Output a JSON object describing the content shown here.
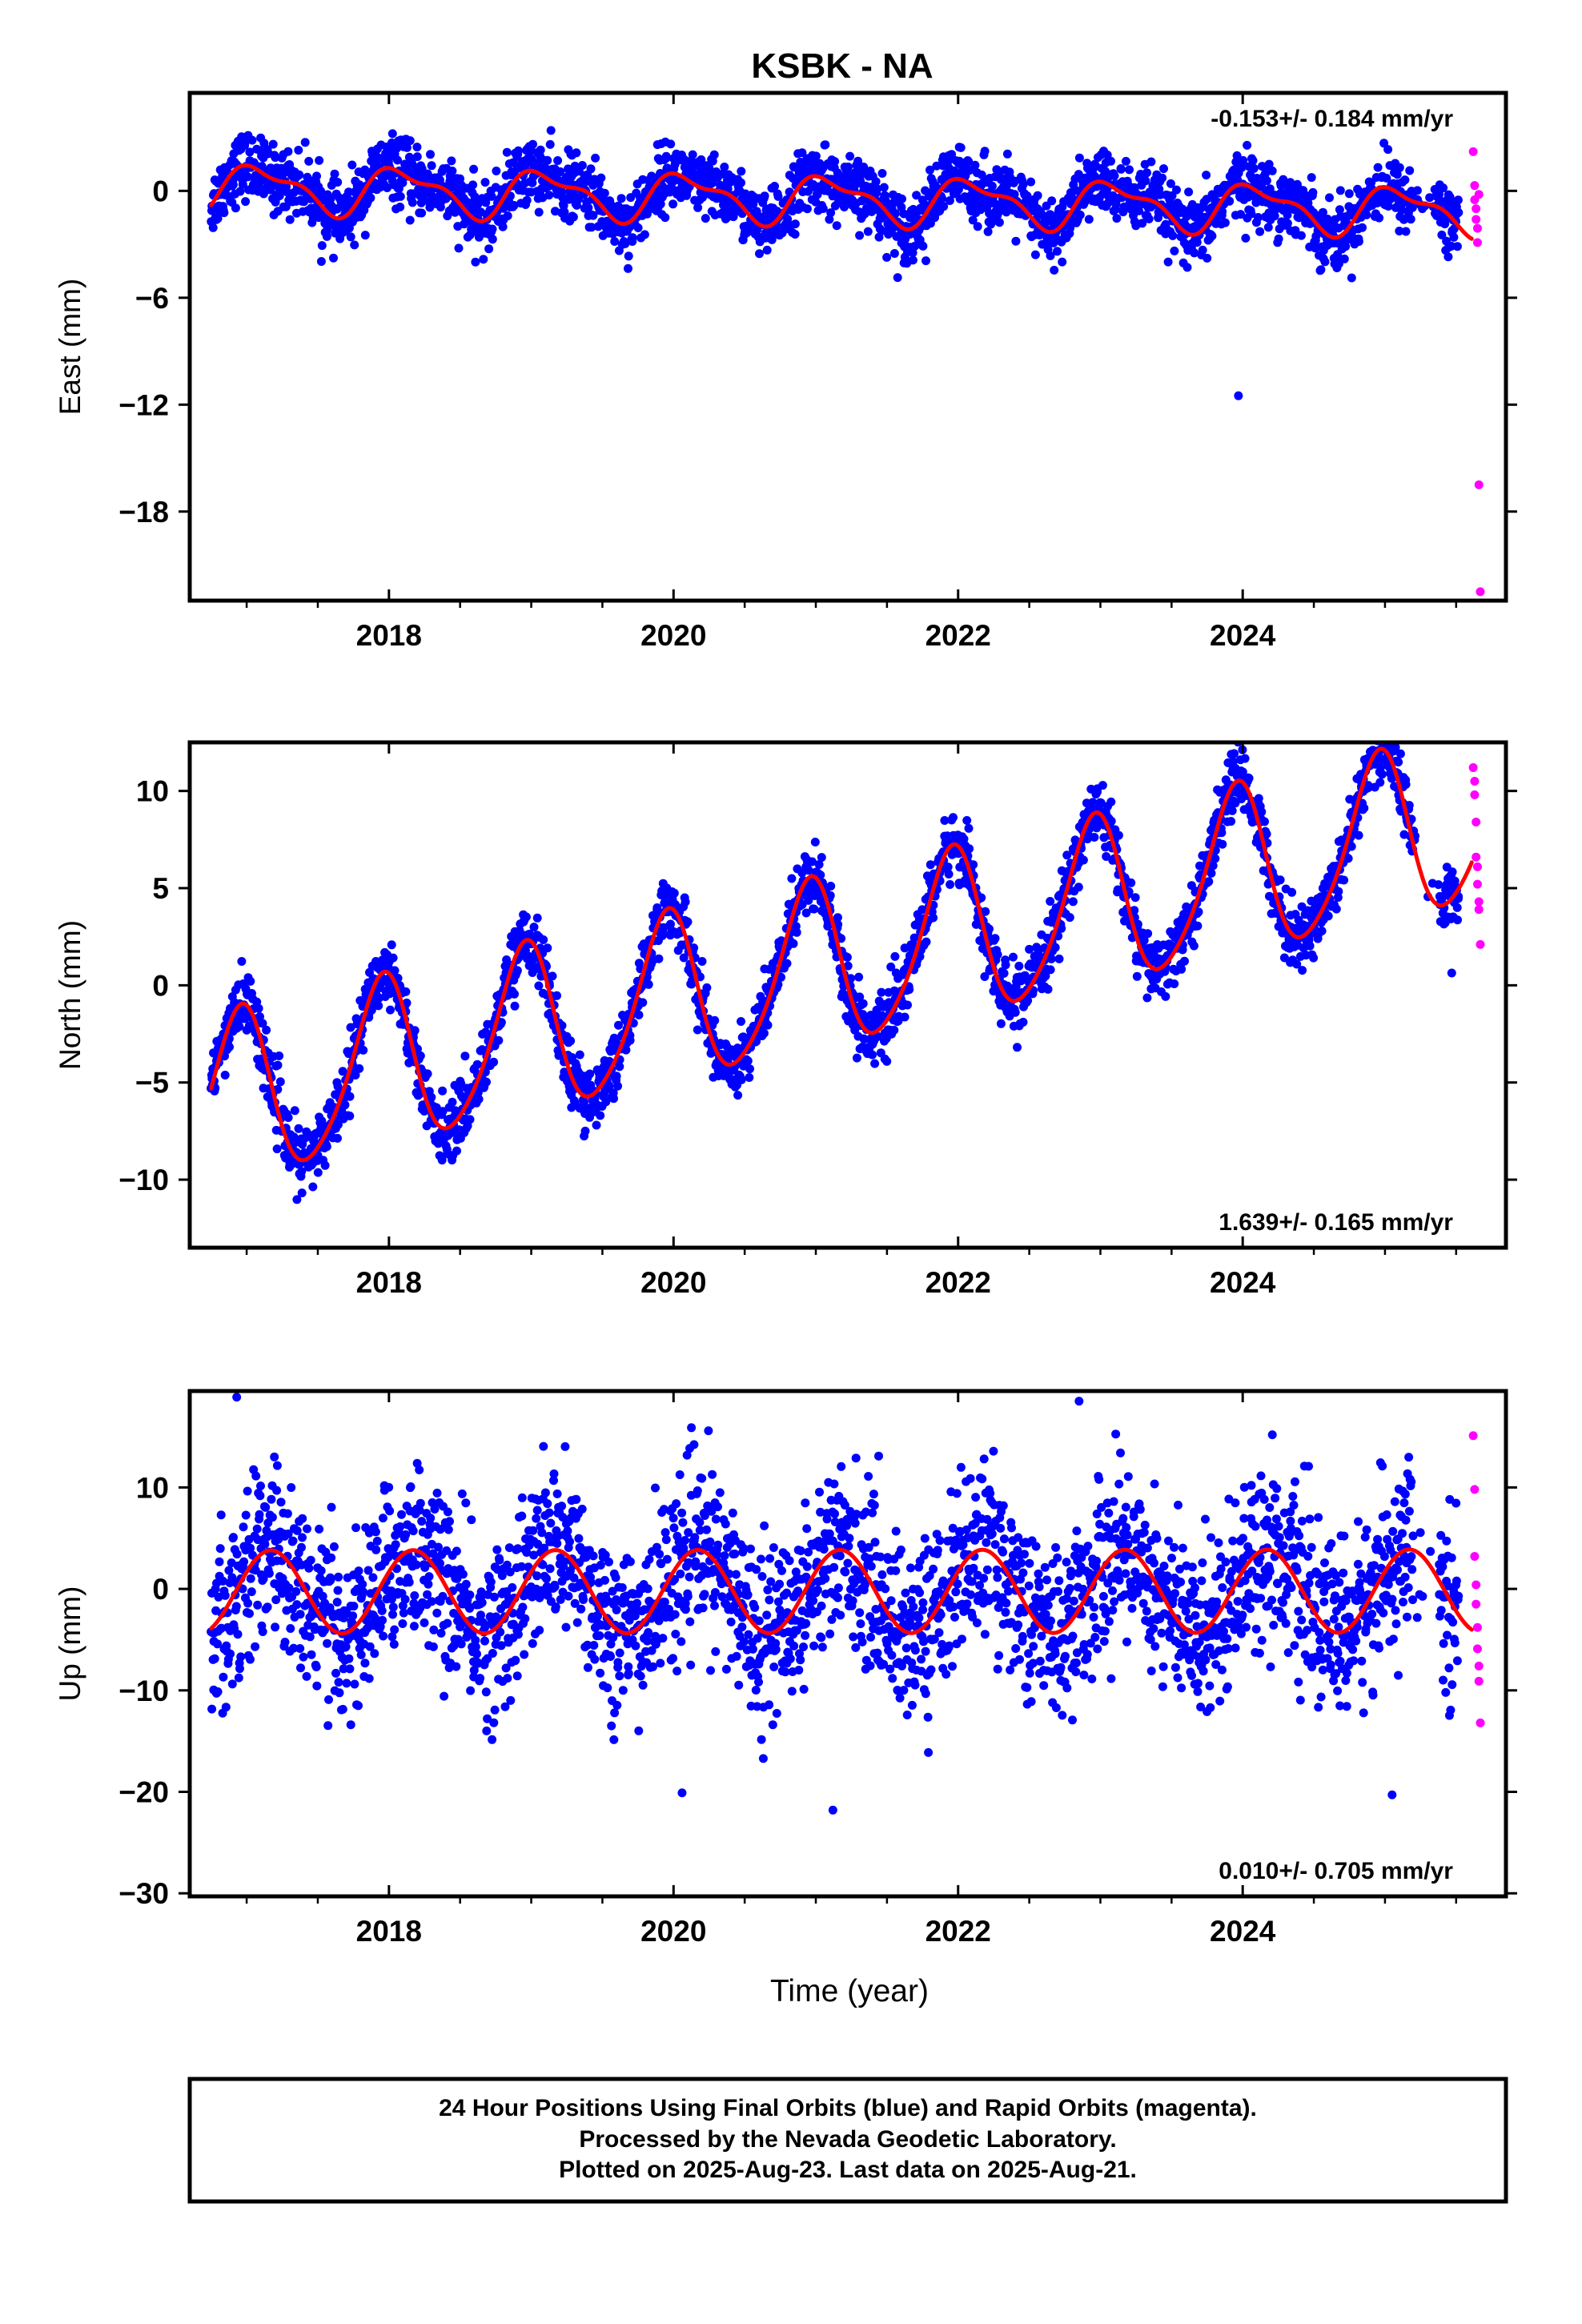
{
  "title": "KSBK - NA",
  "colors": {
    "final_orbit": "#0000ff",
    "rapid_orbit": "#ff00ff",
    "model": "#ff0000",
    "frame": "#000000"
  },
  "x_axis": {
    "label": "Time (year)",
    "range": [
      2016.6,
      2025.85
    ],
    "tick_labels": [
      "2018",
      "2020",
      "2022",
      "2024"
    ],
    "major_ticks": [
      2018,
      2020,
      2022,
      2024
    ],
    "minor_ticks": [
      2017,
      2017.5,
      2018.5,
      2019,
      2019.5,
      2020.5,
      2021,
      2021.5,
      2022.5,
      2023,
      2023.5,
      2024.5,
      2025,
      2025.5
    ]
  },
  "footer": {
    "line1": "24 Hour Positions Using Final Orbits (blue) and Rapid Orbits (magenta).",
    "line2": "Processed by the Nevada Geodetic Laboratory.",
    "line3": "Plotted on 2025-Aug-23. Last data on 2025-Aug-21."
  },
  "chart_data": [
    {
      "type": "scatter",
      "component": "east",
      "ylabel": "East (mm)",
      "ylim": [
        -23,
        5.5
      ],
      "y_ticks": [
        0,
        -6,
        -12,
        -18
      ],
      "y_tick_labels": [
        "0",
        "−6",
        "−12",
        "−18"
      ],
      "rate_label": "-0.153+/- 0.184 mm/yr",
      "rate_position": "top-right",
      "model": {
        "start_year": 2016.75,
        "end_year": 2025.61,
        "offset": 0.2,
        "rate": -0.153,
        "amp_annual": 1.2,
        "phase_annual": 0.95,
        "amp_semi": 0.5,
        "phase_semi": 2.5
      },
      "final_data": {
        "scatter_sd": 0.9,
        "points_per_year": 300,
        "end_year": 2025.52,
        "outliers": [
          [
            2023.97,
            -11.5
          ]
        ]
      },
      "rapid_data": {
        "x": [
          2025.62,
          2025.63,
          2025.63,
          2025.64,
          2025.64,
          2025.65,
          2025.65,
          2025.66,
          2025.66,
          2025.67
        ],
        "y": [
          2.2,
          0.3,
          -0.5,
          -1.0,
          -1.6,
          -2.1,
          -2.9,
          -0.2,
          -16.5,
          -22.5
        ]
      }
    },
    {
      "type": "scatter",
      "component": "north",
      "ylabel": "North (mm)",
      "ylim": [
        -13.5,
        12.5
      ],
      "y_ticks": [
        10,
        5,
        0,
        -5,
        -10
      ],
      "y_tick_labels": [
        "10",
        "5",
        "0",
        "−5",
        "−10"
      ],
      "rate_label": "1.639+/- 0.165 mm/yr",
      "rate_position": "bottom-right",
      "model": {
        "start_year": 2016.75,
        "end_year": 2025.61,
        "offset": -6.1,
        "rate": 1.639,
        "amp_annual": 4.3,
        "phase_annual": 1.9,
        "amp_semi": 0.6,
        "phase_semi": 1.5
      },
      "final_data": {
        "scatter_sd": 0.8,
        "points_per_year": 300,
        "end_year": 2025.52,
        "outliers": []
      },
      "rapid_data": {
        "x": [
          2025.62,
          2025.63,
          2025.63,
          2025.64,
          2025.64,
          2025.65,
          2025.65,
          2025.66,
          2025.66,
          2025.67
        ],
        "y": [
          11.2,
          10.5,
          9.8,
          8.4,
          6.6,
          6.1,
          5.2,
          4.3,
          3.9,
          2.1
        ]
      }
    },
    {
      "type": "scatter",
      "component": "up",
      "ylabel": "Up (mm)",
      "ylim": [
        -30.3,
        19.5
      ],
      "y_ticks": [
        10,
        0,
        -10,
        -20,
        -30
      ],
      "y_tick_labels": [
        "10",
        "0",
        "−10",
        "−20",
        "−30"
      ],
      "rate_label": "0.010+/- 0.705 mm/yr",
      "rate_position": "bottom-right",
      "model": {
        "start_year": 2016.75,
        "end_year": 2025.61,
        "offset": -0.3,
        "rate": 0.01,
        "amp_annual": 4.1,
        "phase_annual": 0.5,
        "amp_semi": 0.0,
        "phase_semi": 0.0
      },
      "final_data": {
        "scatter_sd": 4.2,
        "points_per_year": 300,
        "end_year": 2025.52,
        "outliers": [
          [
            2021.12,
            -21.8
          ],
          [
            2025.05,
            -20.3
          ],
          [
            2020.06,
            -20.1
          ],
          [
            2016.93,
            18.9
          ],
          [
            2022.85,
            18.5
          ]
        ]
      },
      "rapid_data": {
        "x": [
          2025.62,
          2025.63,
          2025.63,
          2025.64,
          2025.64,
          2025.65,
          2025.65,
          2025.66,
          2025.66,
          2025.67
        ],
        "y": [
          15.1,
          9.8,
          3.2,
          0.4,
          -1.5,
          -3.8,
          -5.9,
          -7.6,
          -9.1,
          -13.2
        ]
      }
    }
  ]
}
